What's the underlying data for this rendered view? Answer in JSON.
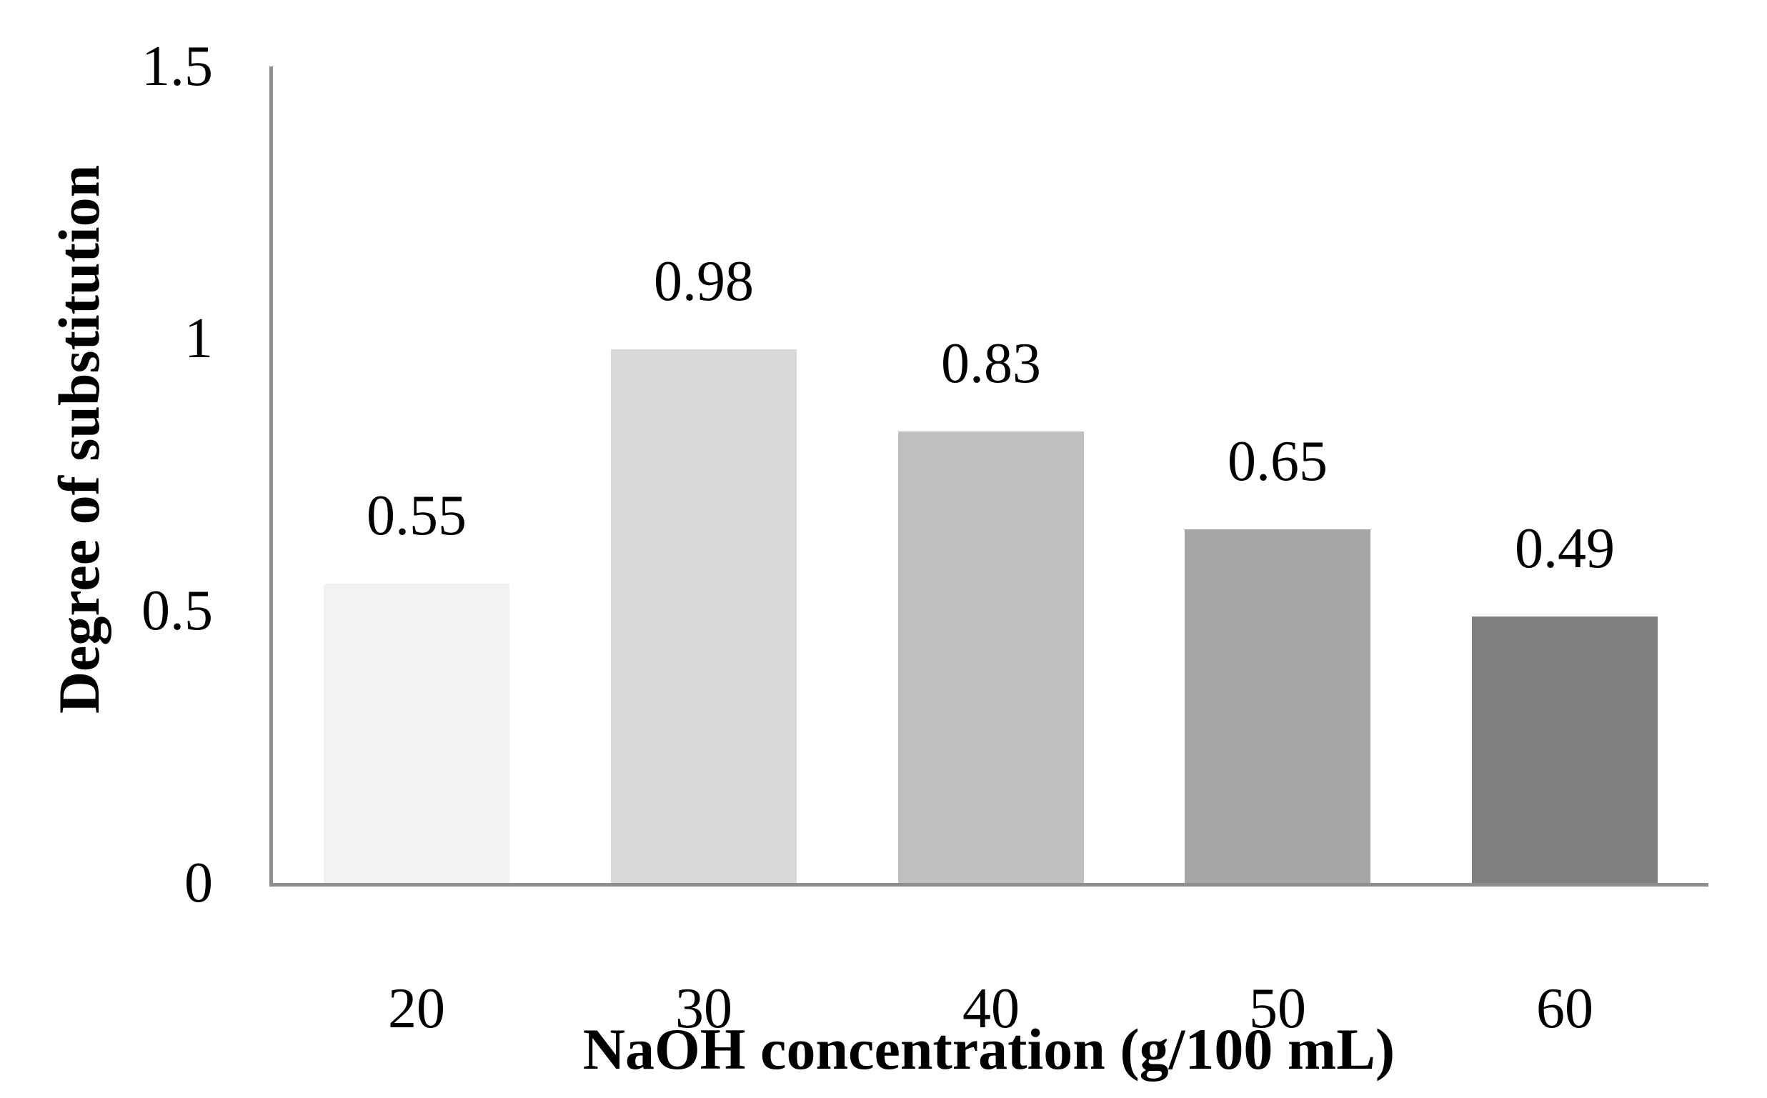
{
  "chart_data": {
    "type": "bar",
    "title": "",
    "categories": [
      "20",
      "30",
      "40",
      "50",
      "60"
    ],
    "values": [
      0.55,
      0.98,
      0.83,
      0.65,
      0.49
    ],
    "data_labels": [
      "0.55",
      "0.98",
      "0.83",
      "0.65",
      "0.49"
    ],
    "xlabel": "NaOH concentration (g/100 mL)",
    "ylabel": "Degree of substitution",
    "ylim": [
      0,
      1.5
    ],
    "yticks": [
      0,
      0.5,
      1,
      1.5
    ],
    "ytick_labels": [
      "0",
      "0.5",
      "1",
      "1.5"
    ],
    "grid": false,
    "legend": "none",
    "bar_colors": [
      "#f2f2f2",
      "#d9d9d9",
      "#bfbfbf",
      "#a6a6a6",
      "#7f7f7f"
    ],
    "axis_color": "#8e8e8e",
    "text_color": "#000000"
  }
}
